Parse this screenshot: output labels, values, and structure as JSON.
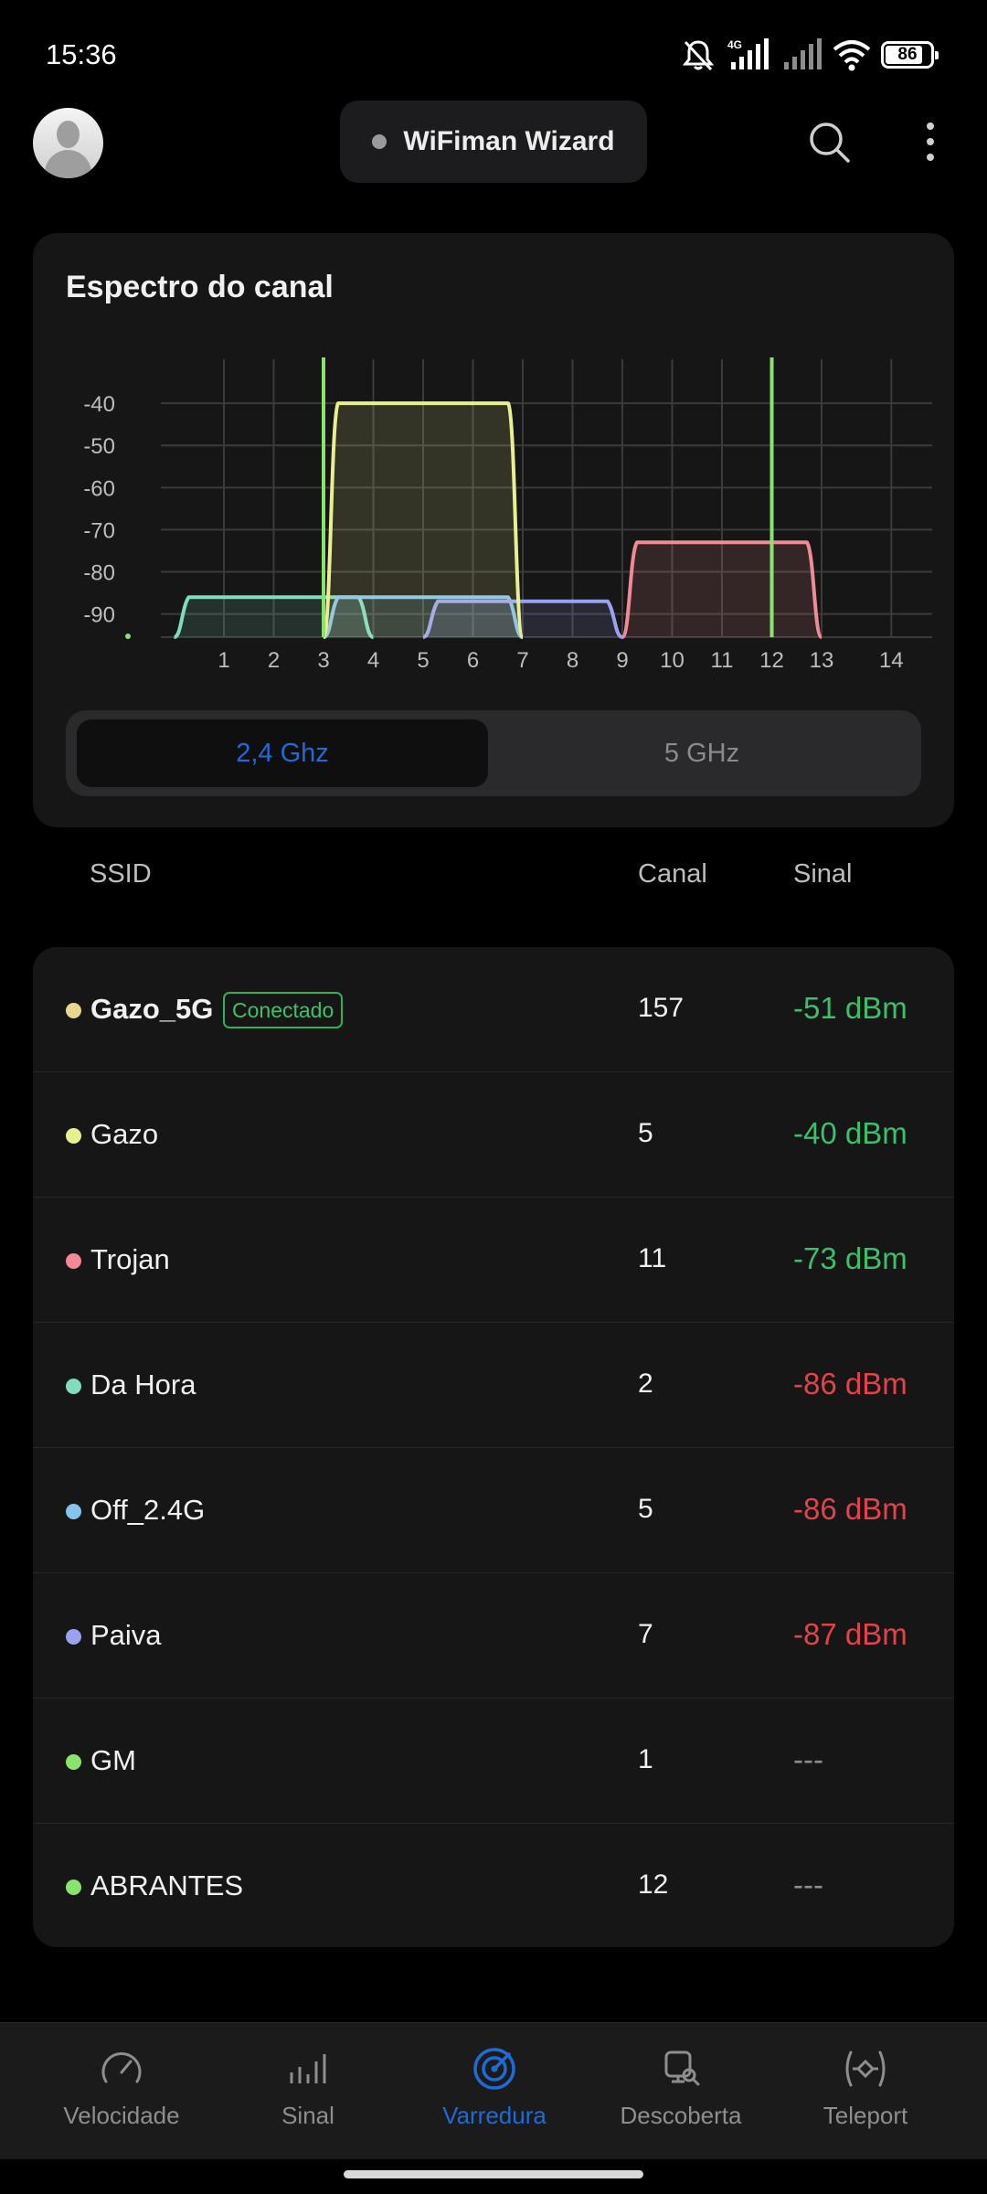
{
  "status_bar": {
    "time": "15:36",
    "network_label": "4G",
    "battery": "86",
    "battery_level": 0.86,
    "icons": [
      "mute-icon",
      "signal-4g-icon",
      "signal-icon",
      "wifi-icon",
      "battery-icon"
    ]
  },
  "header": {
    "wizard_label": "WiFiman Wizard",
    "icons": [
      "avatar",
      "search-icon",
      "more-vertical-icon"
    ]
  },
  "chart_card": {
    "title": "Espectro do canal",
    "band_toggle": {
      "active": "2,4 Ghz",
      "inactive": "5 GHz"
    }
  },
  "chart_data": {
    "type": "area",
    "title": "Espectro do canal",
    "xlabel": "",
    "ylabel": "",
    "x_ticks": [
      "1",
      "2",
      "3",
      "4",
      "5",
      "6",
      "7",
      "8",
      "9",
      "10",
      "11",
      "12",
      "13",
      "14"
    ],
    "y_ticks": [
      "-40",
      "-50",
      "-60",
      "-70",
      "-80",
      "-90"
    ],
    "xlim": [
      -1,
      15
    ],
    "ylim": [
      -95.5,
      -30
    ],
    "grid": true,
    "series": [
      {
        "name": "Gazo",
        "color": "#e8ef8f",
        "channel": 5,
        "signal": -40
      },
      {
        "name": "Trojan",
        "color": "#f08a96",
        "channel": 11,
        "signal": -73
      },
      {
        "name": "Da Hora",
        "color": "#7fdcbf",
        "channel": 2,
        "signal": -86
      },
      {
        "name": "Off_2.4G",
        "color": "#86c3ee",
        "channel": 5,
        "signal": -86
      },
      {
        "name": "Paiva",
        "color": "#9aa2f0",
        "channel": 7,
        "signal": -87
      },
      {
        "name": "GM",
        "color": "#8be36f",
        "channel": 1,
        "signal": null
      },
      {
        "name": "ABRANTES",
        "color": "#8be36f",
        "channel": 12,
        "signal": null
      }
    ],
    "markers": [
      {
        "color": "#8be36f",
        "channel": 3
      },
      {
        "color": "#8be36f",
        "channel": 12
      }
    ]
  },
  "list_header": {
    "ssid": "SSID",
    "channel": "Canal",
    "signal": "Sinal"
  },
  "networks": [
    {
      "ssid": "Gazo_5G",
      "badge": "Conectado",
      "channel": "157",
      "signal": "-51 dBm",
      "dot": "#e6d98f",
      "quality": "good"
    },
    {
      "ssid": "Gazo",
      "channel": "5",
      "signal": "-40 dBm",
      "dot": "#e8ef8f",
      "quality": "good"
    },
    {
      "ssid": "Trojan",
      "channel": "11",
      "signal": "-73 dBm",
      "dot": "#f08a96",
      "quality": "good"
    },
    {
      "ssid": "Da Hora",
      "channel": "2",
      "signal": "-86 dBm",
      "dot": "#7fdcbf",
      "quality": "bad"
    },
    {
      "ssid": "Off_2.4G",
      "channel": "5",
      "signal": "-86 dBm",
      "dot": "#86c3ee",
      "quality": "bad"
    },
    {
      "ssid": "Paiva",
      "channel": "7",
      "signal": "-87 dBm",
      "dot": "#9aa2f0",
      "quality": "bad"
    },
    {
      "ssid": "GM",
      "channel": "1",
      "signal": "---",
      "dot": "#8be36f",
      "quality": "none"
    },
    {
      "ssid": "ABRANTES",
      "channel": "12",
      "signal": "---",
      "dot": "#8be36f",
      "quality": "none"
    }
  ],
  "bottom_nav": [
    {
      "label": "Velocidade",
      "icon": "speedometer-icon",
      "active": false
    },
    {
      "label": "Sinal",
      "icon": "signal-bars-icon",
      "active": false
    },
    {
      "label": "Varredura",
      "icon": "radar-icon",
      "active": true
    },
    {
      "label": "Descoberta",
      "icon": "discovery-icon",
      "active": false
    },
    {
      "label": "Teleport",
      "icon": "teleport-icon",
      "active": false
    }
  ],
  "colors": {
    "accent": "#1e6ad6",
    "good": "#3cbf6a",
    "bad": "#e2434b",
    "connected_badge": "#2fb15c"
  }
}
